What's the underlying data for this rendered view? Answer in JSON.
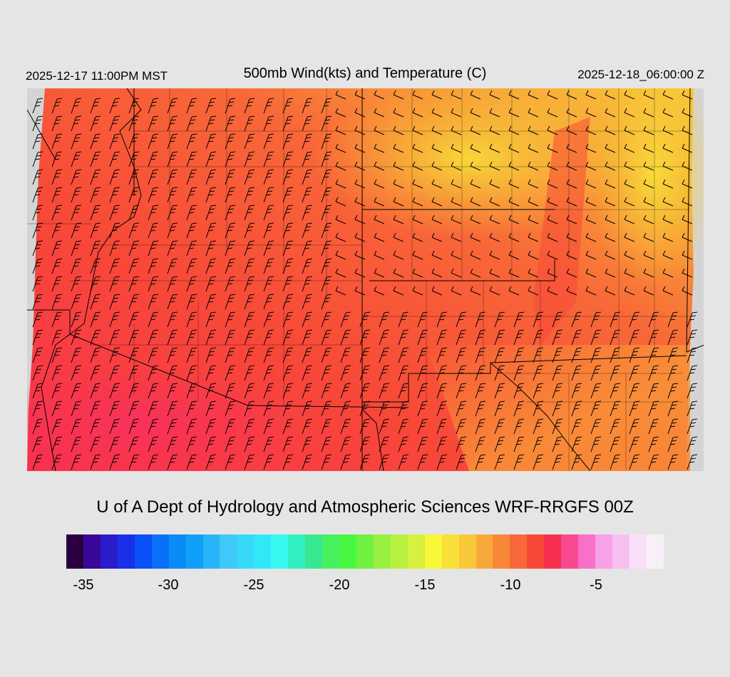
{
  "header": {
    "valid_local": "2025-12-17 11:00PM MST",
    "title": "500mb Wind(kts) and Temperature (C)",
    "valid_utc": "2025-12-18_06:00:00 Z"
  },
  "credit": "U of A Dept of Hydrology and Atmospheric Sciences WRF-RRGFS 00Z",
  "colorbar": {
    "colors": [
      "#2a0040",
      "#3a0898",
      "#2a1ccc",
      "#1a30e8",
      "#0a50f8",
      "#0a70f8",
      "#0a8cf8",
      "#10a0f8",
      "#28b4f8",
      "#40c8f8",
      "#38d8f8",
      "#30e8f8",
      "#38f8f0",
      "#30f0c0",
      "#38e890",
      "#48f060",
      "#48f840",
      "#70f040",
      "#98f040",
      "#b8f040",
      "#d8f040",
      "#f8f838",
      "#f8e038",
      "#f8c838",
      "#f8a838",
      "#f88838",
      "#f86838",
      "#f84838",
      "#f83050",
      "#f84890",
      "#f870c8",
      "#f8a0e8",
      "#f8c0f0",
      "#f8e0f8",
      "#f8f0f8"
    ],
    "tick_labels": [
      "-35",
      "-30",
      "-25",
      "-20",
      "-15",
      "-10",
      "-5"
    ]
  }
}
